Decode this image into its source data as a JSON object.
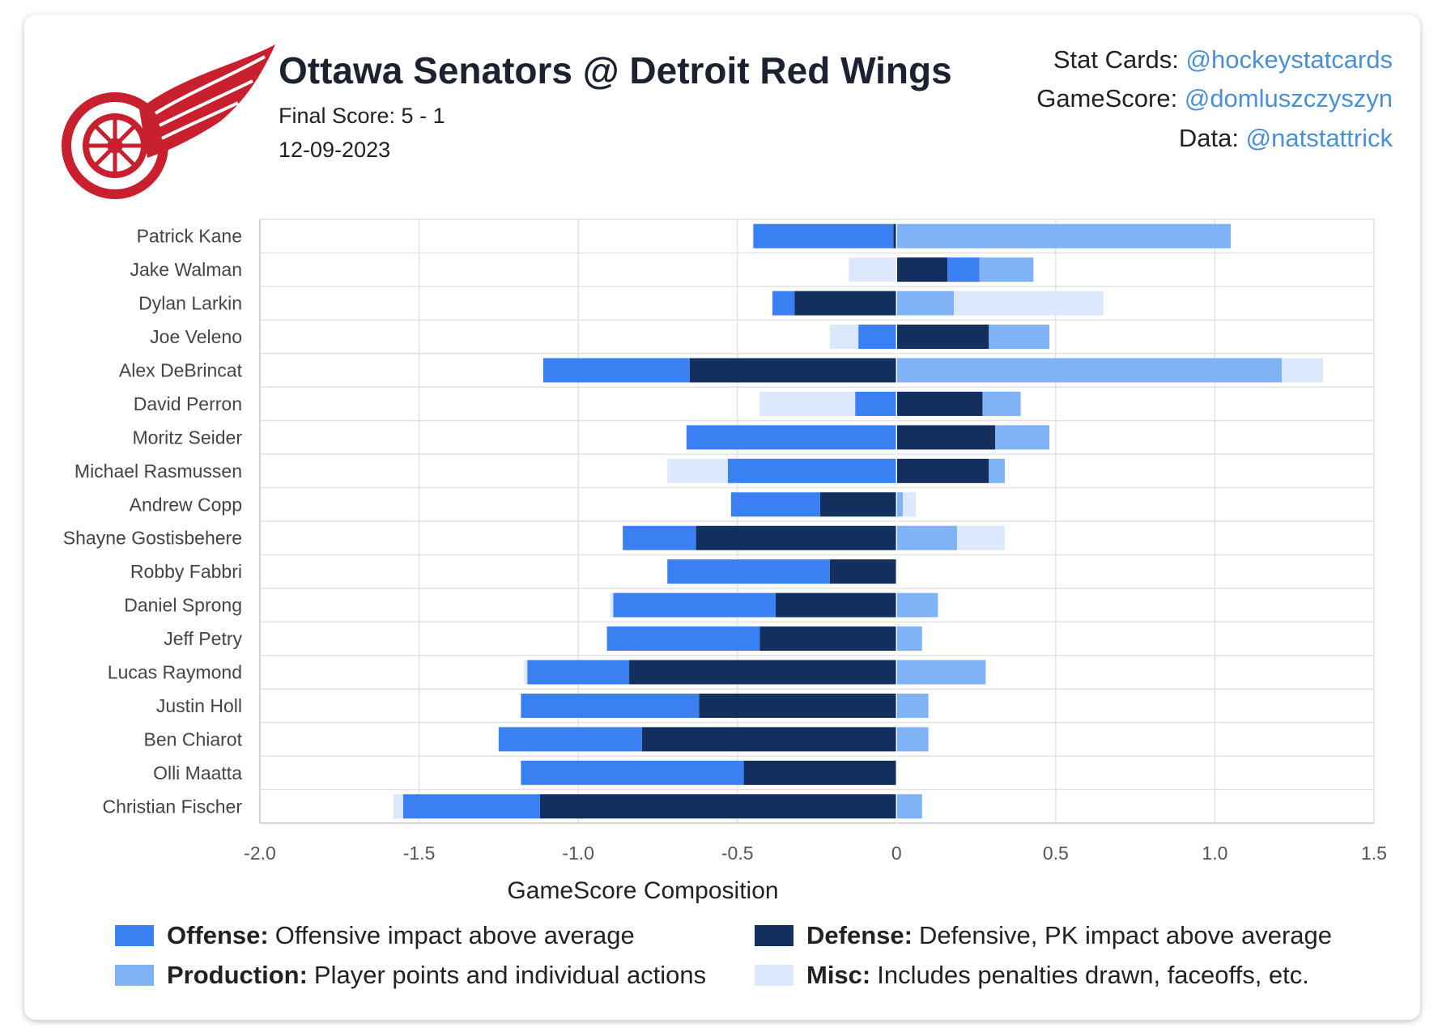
{
  "header": {
    "title": "Ottawa Senators @ Detroit Red Wings",
    "final_score": "Final Score: 5 - 1",
    "date": "12-09-2023",
    "logo": "Detroit Red Wings winged wheel logo"
  },
  "credits": [
    {
      "label": "Stat Cards:",
      "handle": "@hockeystatcards"
    },
    {
      "label": "GameScore:",
      "handle": "@domluszczyszyn"
    },
    {
      "label": "Data:",
      "handle": "@natstattrick"
    }
  ],
  "colors": {
    "offense": "#3a80f2",
    "defense": "#122f5e",
    "production": "#80b3f6",
    "misc": "#dce8fc",
    "link": "#4a90d9"
  },
  "legend": [
    {
      "key": "offense",
      "name": "Offense:",
      "desc": "Offensive impact above average"
    },
    {
      "key": "defense",
      "name": "Defense:",
      "desc": "Defensive, PK impact above average"
    },
    {
      "key": "production",
      "name": "Production:",
      "desc": "Player points and individual actions"
    },
    {
      "key": "misc",
      "name": "Misc:",
      "desc": "Includes penalties drawn, faceoffs, etc."
    }
  ],
  "chart_data": {
    "type": "bar",
    "orientation": "horizontal-stacked-diverging",
    "xlabel": "GameScore Composition",
    "xlim": [
      -2.0,
      1.5
    ],
    "xticks": [
      -2.0,
      -1.5,
      -1.0,
      -0.5,
      0,
      0.5,
      1.0,
      1.5
    ],
    "xtick_labels": [
      "-2.0",
      "-1.5",
      "-1.0",
      "-0.5",
      "0",
      "0.5",
      "1.0",
      "1.5"
    ],
    "grid": true,
    "series_order": [
      "defense",
      "offense",
      "production",
      "misc"
    ],
    "players": [
      {
        "name": "Patrick Kane",
        "defense": -0.01,
        "offense": -0.44,
        "production": 1.05,
        "misc": 0
      },
      {
        "name": "Jake Walman",
        "defense": 0.16,
        "offense": 0.1,
        "production": 0.17,
        "misc": -0.15
      },
      {
        "name": "Dylan Larkin",
        "defense": -0.32,
        "offense": -0.07,
        "production": 0.18,
        "misc": 0.47
      },
      {
        "name": "Joe Veleno",
        "defense": 0.29,
        "offense": -0.12,
        "production": 0.19,
        "misc": -0.09
      },
      {
        "name": "Alex DeBrincat",
        "defense": -0.65,
        "offense": -0.46,
        "production": 1.21,
        "misc": 0.13
      },
      {
        "name": "David Perron",
        "defense": 0.27,
        "offense": -0.13,
        "production": 0.12,
        "misc": -0.3
      },
      {
        "name": "Moritz Seider",
        "defense": 0.31,
        "offense": -0.66,
        "production": 0.17,
        "misc": 0
      },
      {
        "name": "Michael Rasmussen",
        "defense": 0.29,
        "offense": -0.53,
        "production": 0.05,
        "misc": -0.19
      },
      {
        "name": "Andrew Copp",
        "defense": -0.24,
        "offense": -0.28,
        "production": 0.02,
        "misc": 0.04
      },
      {
        "name": "Shayne Gostisbehere",
        "defense": -0.63,
        "offense": -0.23,
        "production": 0.19,
        "misc": 0.15
      },
      {
        "name": "Robby Fabbri",
        "defense": -0.21,
        "offense": -0.51,
        "production": 0,
        "misc": 0
      },
      {
        "name": "Daniel Sprong",
        "defense": -0.38,
        "offense": -0.51,
        "production": 0.13,
        "misc": -0.01
      },
      {
        "name": "Jeff Petry",
        "defense": -0.43,
        "offense": -0.48,
        "production": 0.08,
        "misc": 0
      },
      {
        "name": "Lucas Raymond",
        "defense": -0.84,
        "offense": -0.32,
        "production": 0.28,
        "misc": -0.01
      },
      {
        "name": "Justin Holl",
        "defense": -0.62,
        "offense": -0.56,
        "production": 0.1,
        "misc": 0
      },
      {
        "name": "Ben Chiarot",
        "defense": -0.8,
        "offense": -0.45,
        "production": 0.1,
        "misc": 0
      },
      {
        "name": "Olli Maatta",
        "defense": -0.48,
        "offense": -0.7,
        "production": 0,
        "misc": 0
      },
      {
        "name": "Christian Fischer",
        "defense": -1.12,
        "offense": -0.43,
        "production": 0.08,
        "misc": -0.03
      }
    ]
  }
}
